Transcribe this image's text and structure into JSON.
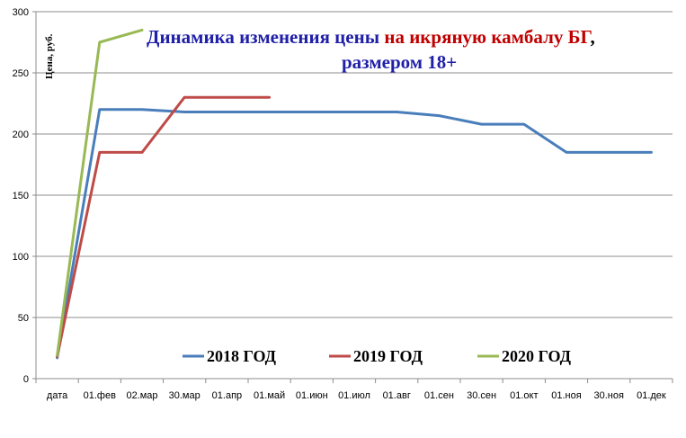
{
  "chart_data": {
    "type": "line",
    "title_part1": "Динамика изменения цены ",
    "title_part2": "на икряную камбалу  БГ",
    "title_part3": ",",
    "subtitle": "размером  18+",
    "ylabel": "Цена, руб.",
    "xlabel": "",
    "ylim": [
      0,
      300
    ],
    "yticks": [
      0,
      50,
      100,
      150,
      200,
      250,
      300
    ],
    "grid": true,
    "legend_position": "bottom-center",
    "categories": [
      "дата",
      "01.фев",
      "02.мар",
      "30.мар",
      "01.апр",
      "01.май",
      "01.июн",
      "01.июл",
      "01.авг",
      "01.сен",
      "30.сен",
      "01.окт",
      "01.ноя",
      "30.ноя",
      "01.дек"
    ],
    "series": [
      {
        "name": "2018 ГОД",
        "color": "#4a7ebb",
        "points": [
          [
            0,
            17
          ],
          [
            1,
            220
          ],
          [
            2,
            220
          ],
          [
            3,
            218
          ],
          [
            4,
            218
          ],
          [
            5,
            218
          ],
          [
            6,
            218
          ],
          [
            7,
            218
          ],
          [
            8,
            218
          ],
          [
            9,
            215
          ],
          [
            10,
            208
          ],
          [
            11,
            208
          ],
          [
            12,
            185
          ],
          [
            13,
            185
          ],
          [
            14,
            185
          ]
        ]
      },
      {
        "name": "2019 ГОД",
        "color": "#be4b48",
        "points": [
          [
            0,
            18
          ],
          [
            1,
            185
          ],
          [
            2,
            185
          ],
          [
            3,
            230
          ],
          [
            4,
            230
          ],
          [
            5,
            230
          ]
        ]
      },
      {
        "name": "2020 ГОД",
        "color": "#98b954",
        "points": [
          [
            0,
            19
          ],
          [
            1,
            275
          ],
          [
            2,
            285
          ]
        ]
      }
    ],
    "colors": {
      "title_blue": "#1f1fa8",
      "title_red": "#c00000",
      "grid": "#8c8c8c",
      "axis": "#8c8c8c"
    }
  }
}
